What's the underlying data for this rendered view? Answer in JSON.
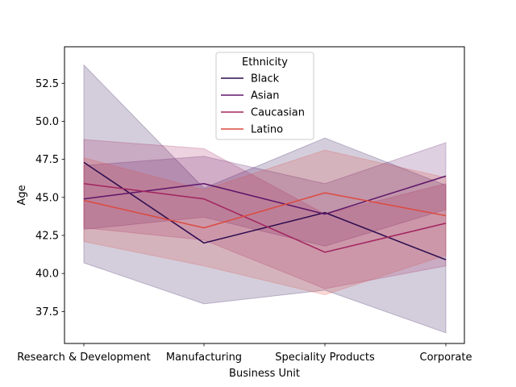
{
  "chart_data": {
    "type": "line",
    "title": "",
    "xlabel": "Business Unit",
    "ylabel": "Age",
    "categories": [
      "Research & Development",
      "Manufacturing",
      "Speciality Products",
      "Corporate"
    ],
    "ylim": [
      35.4,
      54.9
    ],
    "yticks": [
      37.5,
      40.0,
      42.5,
      45.0,
      47.5,
      50.0,
      52.5
    ],
    "ytick_labels": [
      "37.5",
      "40.0",
      "42.5",
      "45.0",
      "47.5",
      "50.0",
      "52.5"
    ],
    "grid": false,
    "legend": {
      "title": "Ethnicity",
      "placement": "upper-center"
    },
    "series": [
      {
        "name": "Black",
        "color": "#2a0a4e",
        "values": [
          47.3,
          42.0,
          44.0,
          40.9
        ],
        "ci_low": [
          40.7,
          38.0,
          38.9,
          36.1
        ],
        "ci_high": [
          53.7,
          45.6,
          48.9,
          45.8
        ]
      },
      {
        "name": "Asian",
        "color": "#5c1568",
        "values": [
          44.9,
          45.9,
          43.9,
          46.4
        ],
        "ci_low": [
          42.9,
          43.7,
          41.8,
          44.2
        ],
        "ci_high": [
          47.1,
          47.7,
          45.9,
          48.6
        ]
      },
      {
        "name": "Caucasian",
        "color": "#a2245e",
        "values": [
          45.9,
          44.9,
          41.4,
          43.3
        ],
        "ci_low": [
          43.0,
          42.2,
          39.0,
          40.5
        ],
        "ci_high": [
          48.8,
          48.2,
          43.9,
          45.9
        ]
      },
      {
        "name": "Latino",
        "color": "#dc4a40",
        "values": [
          44.8,
          43.0,
          45.3,
          43.8
        ],
        "ci_low": [
          42.1,
          40.5,
          38.6,
          41.2
        ],
        "ci_high": [
          47.6,
          45.5,
          48.1,
          46.3
        ]
      }
    ]
  }
}
